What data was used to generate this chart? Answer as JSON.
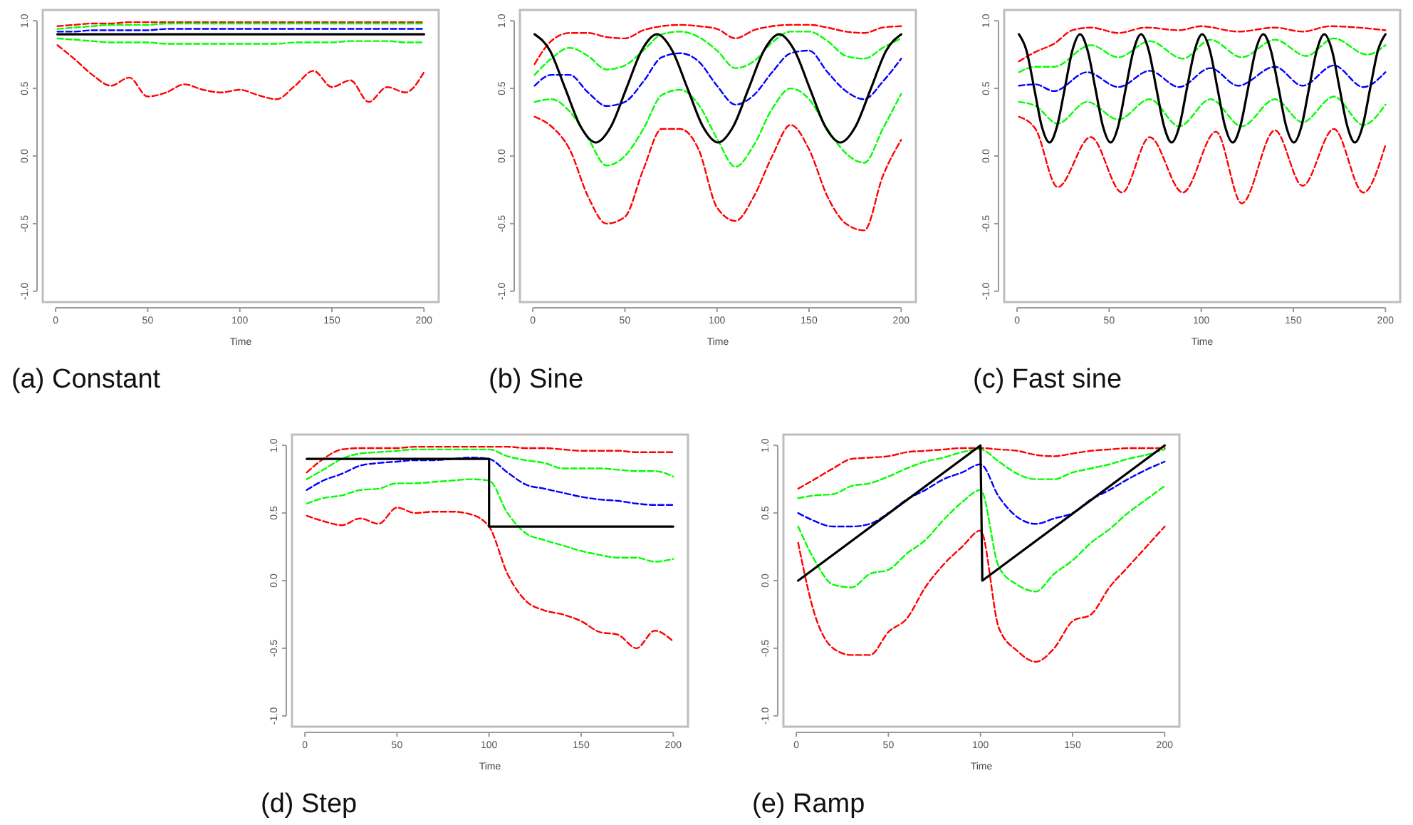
{
  "chart_data": [
    {
      "type": "line",
      "title": "(a) Constant",
      "xlabel": "Time",
      "xlim": [
        -7,
        208
      ],
      "ylim": [
        -1.08,
        1.08
      ],
      "xticks": [
        0,
        50,
        100,
        150,
        200
      ],
      "yticks": [
        {
          "value": -1,
          "label": "-1.0"
        },
        {
          "value": -0.5,
          "label": "-0.5"
        },
        {
          "value": 0,
          "label": "0.0"
        },
        {
          "value": 0.5,
          "label": "0.5"
        },
        {
          "value": 1,
          "label": "1.0"
        }
      ],
      "x": [
        1,
        10,
        20,
        30,
        40,
        50,
        60,
        70,
        80,
        90,
        100,
        110,
        120,
        130,
        140,
        150,
        160,
        170,
        180,
        190,
        200
      ],
      "series": [
        {
          "color": "#ff0000",
          "line_style": "dashed",
          "values": [
            0.96,
            0.97,
            0.98,
            0.98,
            0.99,
            0.99,
            0.99,
            0.99,
            0.99,
            0.99,
            0.99,
            0.99,
            0.99,
            0.99,
            0.99,
            0.99,
            0.99,
            0.99,
            0.99,
            0.99,
            0.99
          ]
        },
        {
          "color": "#00ff00",
          "line_style": "dashed",
          "values": [
            0.94,
            0.95,
            0.96,
            0.97,
            0.97,
            0.97,
            0.98,
            0.98,
            0.98,
            0.98,
            0.98,
            0.98,
            0.98,
            0.98,
            0.98,
            0.98,
            0.98,
            0.98,
            0.98,
            0.98,
            0.98
          ]
        },
        {
          "color": "#0000ff",
          "line_style": "dashed",
          "values": [
            0.92,
            0.92,
            0.93,
            0.93,
            0.93,
            0.93,
            0.94,
            0.94,
            0.94,
            0.94,
            0.94,
            0.94,
            0.94,
            0.94,
            0.94,
            0.94,
            0.94,
            0.94,
            0.94,
            0.94,
            0.94
          ]
        },
        {
          "color": "#00ff00",
          "line_style": "dashed",
          "values": [
            0.87,
            0.86,
            0.85,
            0.84,
            0.84,
            0.84,
            0.83,
            0.83,
            0.83,
            0.83,
            0.83,
            0.83,
            0.83,
            0.84,
            0.84,
            0.84,
            0.85,
            0.85,
            0.85,
            0.84,
            0.84
          ]
        },
        {
          "color": "#ff0000",
          "line_style": "dashed",
          "values": [
            0.82,
            0.72,
            0.6,
            0.52,
            0.58,
            0.44,
            0.47,
            0.53,
            0.49,
            0.47,
            0.49,
            0.45,
            0.42,
            0.52,
            0.63,
            0.51,
            0.56,
            0.4,
            0.51,
            0.47,
            0.62
          ]
        },
        {
          "color": "#000000",
          "line_style": "solid",
          "x": [
            1,
            200
          ],
          "values": [
            0.9,
            0.9
          ]
        }
      ]
    },
    {
      "type": "line",
      "title": "(b) Sine",
      "xlabel": "Time",
      "xlim": [
        -7,
        208
      ],
      "ylim": [
        -1.08,
        1.08
      ],
      "xticks": [
        0,
        50,
        100,
        150,
        200
      ],
      "yticks": [
        {
          "value": -1,
          "label": "-1.0"
        },
        {
          "value": -0.5,
          "label": "-0.5"
        },
        {
          "value": 0,
          "label": "0.0"
        },
        {
          "value": 0.5,
          "label": "0.5"
        },
        {
          "value": 1,
          "label": "1.0"
        }
      ],
      "x": [
        1,
        10,
        20,
        30,
        40,
        50,
        60,
        70,
        80,
        90,
        100,
        110,
        120,
        130,
        140,
        150,
        160,
        170,
        180,
        190,
        200
      ],
      "series": [
        {
          "color": "#ff0000",
          "line_style": "dashed",
          "values": [
            0.68,
            0.85,
            0.91,
            0.91,
            0.88,
            0.87,
            0.93,
            0.96,
            0.97,
            0.96,
            0.94,
            0.87,
            0.93,
            0.96,
            0.97,
            0.97,
            0.95,
            0.92,
            0.91,
            0.95,
            0.96
          ]
        },
        {
          "color": "#00ff00",
          "line_style": "dashed",
          "values": [
            0.6,
            0.72,
            0.8,
            0.74,
            0.64,
            0.67,
            0.78,
            0.9,
            0.92,
            0.88,
            0.78,
            0.65,
            0.7,
            0.84,
            0.92,
            0.92,
            0.85,
            0.74,
            0.72,
            0.8,
            0.87
          ]
        },
        {
          "color": "#0000ff",
          "line_style": "dashed",
          "values": [
            0.52,
            0.6,
            0.6,
            0.47,
            0.37,
            0.4,
            0.55,
            0.73,
            0.76,
            0.7,
            0.52,
            0.38,
            0.45,
            0.62,
            0.76,
            0.78,
            0.62,
            0.48,
            0.42,
            0.55,
            0.72
          ]
        },
        {
          "color": "#00ff00",
          "line_style": "dashed",
          "values": [
            0.4,
            0.42,
            0.33,
            0.13,
            -0.07,
            0.0,
            0.2,
            0.45,
            0.49,
            0.38,
            0.13,
            -0.08,
            0.08,
            0.35,
            0.5,
            0.42,
            0.2,
            0.02,
            -0.05,
            0.2,
            0.46
          ]
        },
        {
          "color": "#ff0000",
          "line_style": "dashed",
          "values": [
            0.29,
            0.22,
            0.05,
            -0.3,
            -0.5,
            -0.45,
            -0.1,
            0.2,
            0.2,
            0.05,
            -0.38,
            -0.48,
            -0.3,
            0.0,
            0.23,
            0.05,
            -0.3,
            -0.5,
            -0.55,
            -0.15,
            0.12
          ]
        },
        {
          "color": "#000000",
          "line_style": "solid",
          "x": [
            1,
            9.3,
            17.6,
            25.9,
            34.2,
            42.5,
            50.8,
            59.1,
            67.4,
            75.7,
            84,
            92.3,
            100.6,
            108.9,
            117.2,
            125.5,
            133.8,
            142.1,
            150.4,
            158.7,
            167,
            175.3,
            183.6,
            191.9,
            200
          ],
          "values": [
            0.9,
            0.78,
            0.5,
            0.22,
            0.1,
            0.22,
            0.5,
            0.78,
            0.9,
            0.78,
            0.5,
            0.22,
            0.1,
            0.22,
            0.5,
            0.78,
            0.9,
            0.78,
            0.5,
            0.22,
            0.1,
            0.22,
            0.5,
            0.78,
            0.9
          ]
        }
      ]
    },
    {
      "type": "line",
      "title": "(c) Fast sine",
      "xlabel": "Time",
      "xlim": [
        -7,
        208
      ],
      "ylim": [
        -1.08,
        1.08
      ],
      "xticks": [
        0,
        50,
        100,
        150,
        200
      ],
      "yticks": [
        {
          "value": -1,
          "label": "-1.0"
        },
        {
          "value": -0.5,
          "label": "-0.5"
        },
        {
          "value": 0,
          "label": "0.0"
        },
        {
          "value": 0.5,
          "label": "0.5"
        },
        {
          "value": 1,
          "label": "1.0"
        }
      ],
      "series": [
        {
          "color": "#ff0000",
          "line_style": "dashed",
          "x": [
            1,
            10,
            20,
            30,
            40,
            55,
            70,
            88,
            100,
            120,
            140,
            155,
            170,
            185,
            200
          ],
          "values": [
            0.7,
            0.77,
            0.83,
            0.93,
            0.95,
            0.91,
            0.95,
            0.93,
            0.96,
            0.92,
            0.95,
            0.92,
            0.96,
            0.95,
            0.93
          ]
        },
        {
          "color": "#00ff00",
          "line_style": "dashed",
          "x": [
            1,
            10,
            20,
            40,
            55,
            72,
            90,
            105,
            122,
            140,
            157,
            172,
            190,
            200
          ],
          "values": [
            0.62,
            0.66,
            0.66,
            0.82,
            0.73,
            0.85,
            0.72,
            0.86,
            0.73,
            0.86,
            0.74,
            0.87,
            0.75,
            0.82
          ]
        },
        {
          "color": "#0000ff",
          "line_style": "dashed",
          "x": [
            1,
            10,
            20,
            38,
            55,
            72,
            88,
            105,
            120,
            140,
            155,
            172,
            188,
            200
          ],
          "values": [
            0.52,
            0.53,
            0.48,
            0.62,
            0.51,
            0.63,
            0.51,
            0.65,
            0.52,
            0.66,
            0.52,
            0.67,
            0.51,
            0.62
          ]
        },
        {
          "color": "#00ff00",
          "line_style": "dashed",
          "x": [
            1,
            10,
            22,
            38,
            55,
            72,
            88,
            105,
            122,
            140,
            155,
            172,
            188,
            200
          ],
          "values": [
            0.4,
            0.37,
            0.24,
            0.4,
            0.27,
            0.42,
            0.22,
            0.42,
            0.22,
            0.42,
            0.25,
            0.44,
            0.23,
            0.38
          ]
        },
        {
          "color": "#ff0000",
          "line_style": "dashed",
          "x": [
            1,
            10,
            22,
            40,
            57,
            72,
            90,
            108,
            122,
            140,
            155,
            172,
            188,
            200
          ],
          "values": [
            0.29,
            0.2,
            -0.23,
            0.14,
            -0.27,
            0.14,
            -0.27,
            0.18,
            -0.35,
            0.19,
            -0.22,
            0.2,
            -0.27,
            0.08
          ]
        },
        {
          "color": "#000000",
          "line_style": "solid",
          "x": [
            1,
            5.1,
            9.3,
            13.4,
            17.6,
            21.7,
            25.9,
            30,
            34.2,
            38.3,
            42.5,
            46.6,
            50.8,
            54.9,
            59,
            63.2,
            67.3,
            71.5,
            75.6,
            79.8,
            83.9,
            88.1,
            92.2,
            96.4,
            100.5,
            104.7,
            108.8,
            112.9,
            117.1,
            121.2,
            125.4,
            129.5,
            133.7,
            137.8,
            142,
            146.1,
            150.3,
            154.4,
            158.5,
            162.7,
            166.8,
            171,
            175.1,
            179.3,
            183.4,
            187.6,
            191.7,
            195.9,
            200
          ],
          "values": [
            0.9,
            0.78,
            0.5,
            0.22,
            0.1,
            0.22,
            0.5,
            0.78,
            0.9,
            0.78,
            0.5,
            0.22,
            0.1,
            0.22,
            0.5,
            0.78,
            0.9,
            0.78,
            0.5,
            0.22,
            0.1,
            0.22,
            0.5,
            0.78,
            0.9,
            0.78,
            0.5,
            0.22,
            0.1,
            0.22,
            0.5,
            0.78,
            0.9,
            0.78,
            0.5,
            0.22,
            0.1,
            0.22,
            0.5,
            0.78,
            0.9,
            0.78,
            0.5,
            0.22,
            0.1,
            0.22,
            0.5,
            0.78,
            0.9
          ]
        }
      ]
    },
    {
      "type": "line",
      "title": "(d) Step",
      "xlabel": "Time",
      "xlim": [
        -7,
        208
      ],
      "ylim": [
        -1.08,
        1.08
      ],
      "xticks": [
        0,
        50,
        100,
        150,
        200
      ],
      "yticks": [
        {
          "value": -1,
          "label": "-1.0"
        },
        {
          "value": -0.5,
          "label": "-0.5"
        },
        {
          "value": 0,
          "label": "0.0"
        },
        {
          "value": 0.5,
          "label": "0.5"
        },
        {
          "value": 1,
          "label": "1.0"
        }
      ],
      "x": [
        1,
        10,
        20,
        30,
        40,
        50,
        60,
        70,
        80,
        90,
        100,
        110,
        120,
        130,
        140,
        150,
        160,
        170,
        180,
        190,
        200
      ],
      "series": [
        {
          "color": "#ff0000",
          "line_style": "dashed",
          "values": [
            0.8,
            0.9,
            0.97,
            0.98,
            0.98,
            0.98,
            0.99,
            0.99,
            0.99,
            0.99,
            0.99,
            0.99,
            0.98,
            0.98,
            0.97,
            0.96,
            0.96,
            0.96,
            0.95,
            0.95,
            0.95
          ]
        },
        {
          "color": "#00ff00",
          "line_style": "dashed",
          "values": [
            0.75,
            0.82,
            0.9,
            0.94,
            0.95,
            0.96,
            0.97,
            0.97,
            0.97,
            0.97,
            0.97,
            0.92,
            0.89,
            0.87,
            0.83,
            0.83,
            0.83,
            0.82,
            0.81,
            0.81,
            0.77
          ]
        },
        {
          "color": "#0000ff",
          "line_style": "dashed",
          "values": [
            0.67,
            0.74,
            0.79,
            0.85,
            0.87,
            0.88,
            0.89,
            0.89,
            0.9,
            0.91,
            0.9,
            0.8,
            0.71,
            0.68,
            0.65,
            0.62,
            0.6,
            0.59,
            0.57,
            0.56,
            0.56
          ]
        },
        {
          "color": "#00ff00",
          "line_style": "dashed",
          "values": [
            0.57,
            0.61,
            0.63,
            0.67,
            0.68,
            0.72,
            0.72,
            0.73,
            0.74,
            0.75,
            0.74,
            0.5,
            0.35,
            0.3,
            0.26,
            0.22,
            0.19,
            0.17,
            0.17,
            0.14,
            0.16
          ]
        },
        {
          "color": "#ff0000",
          "line_style": "dashed",
          "values": [
            0.48,
            0.44,
            0.41,
            0.46,
            0.42,
            0.54,
            0.5,
            0.51,
            0.51,
            0.49,
            0.4,
            0.05,
            -0.15,
            -0.22,
            -0.25,
            -0.3,
            -0.38,
            -0.4,
            -0.5,
            -0.37,
            -0.45
          ]
        },
        {
          "color": "#000000",
          "line_style": "solid",
          "x": [
            1,
            100,
            100,
            200
          ],
          "values": [
            0.9,
            0.9,
            0.4,
            0.4
          ]
        }
      ]
    },
    {
      "type": "line",
      "title": "(e) Ramp",
      "xlabel": "Time",
      "xlim": [
        -7,
        208
      ],
      "ylim": [
        -1.08,
        1.08
      ],
      "xticks": [
        0,
        50,
        100,
        150,
        200
      ],
      "yticks": [
        {
          "value": -1,
          "label": "-1.0"
        },
        {
          "value": -0.5,
          "label": "-0.5"
        },
        {
          "value": 0,
          "label": "0.0"
        },
        {
          "value": 0.5,
          "label": "0.5"
        },
        {
          "value": 1,
          "label": "1.0"
        }
      ],
      "x": [
        1,
        10,
        20,
        30,
        40,
        50,
        60,
        70,
        80,
        90,
        100,
        110,
        120,
        130,
        140,
        150,
        160,
        170,
        180,
        190,
        200
      ],
      "series": [
        {
          "color": "#ff0000",
          "line_style": "dashed",
          "values": [
            0.68,
            0.75,
            0.83,
            0.9,
            0.91,
            0.92,
            0.95,
            0.96,
            0.97,
            0.98,
            0.98,
            0.97,
            0.96,
            0.93,
            0.92,
            0.94,
            0.96,
            0.97,
            0.98,
            0.98,
            0.98
          ]
        },
        {
          "color": "#00ff00",
          "line_style": "dashed",
          "values": [
            0.61,
            0.63,
            0.64,
            0.7,
            0.72,
            0.77,
            0.83,
            0.88,
            0.91,
            0.95,
            0.97,
            0.88,
            0.79,
            0.75,
            0.75,
            0.8,
            0.83,
            0.86,
            0.9,
            0.93,
            0.97
          ]
        },
        {
          "color": "#0000ff",
          "line_style": "dashed",
          "values": [
            0.5,
            0.44,
            0.4,
            0.4,
            0.42,
            0.5,
            0.6,
            0.67,
            0.75,
            0.8,
            0.86,
            0.62,
            0.47,
            0.42,
            0.46,
            0.5,
            0.6,
            0.67,
            0.75,
            0.82,
            0.88
          ]
        },
        {
          "color": "#00ff00",
          "line_style": "dashed",
          "values": [
            0.4,
            0.15,
            -0.03,
            -0.05,
            0.05,
            0.08,
            0.2,
            0.3,
            0.45,
            0.58,
            0.67,
            0.1,
            -0.03,
            -0.08,
            0.05,
            0.15,
            0.28,
            0.38,
            0.5,
            0.6,
            0.7
          ]
        },
        {
          "color": "#ff0000",
          "line_style": "dashed",
          "values": [
            0.28,
            -0.25,
            -0.5,
            -0.55,
            -0.55,
            -0.38,
            -0.28,
            -0.05,
            0.12,
            0.25,
            0.37,
            -0.35,
            -0.52,
            -0.6,
            -0.5,
            -0.3,
            -0.25,
            -0.05,
            0.1,
            0.25,
            0.4
          ]
        },
        {
          "color": "#000000",
          "line_style": "solid",
          "x": [
            1,
            100,
            101,
            200
          ],
          "values": [
            0,
            1,
            0,
            1
          ]
        }
      ]
    }
  ]
}
